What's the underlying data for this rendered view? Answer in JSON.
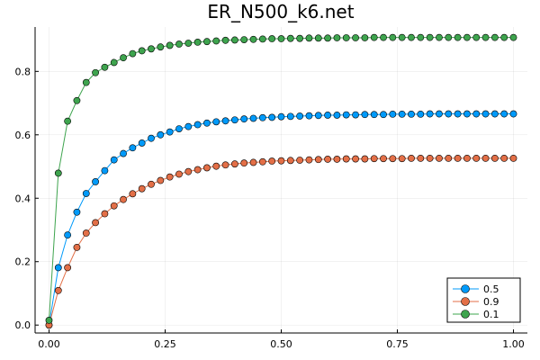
{
  "chart_data": {
    "type": "line",
    "title": "ER_N500_k6.net",
    "xlabel": "",
    "ylabel": "",
    "xlim": [
      -0.03,
      1.03
    ],
    "ylim": [
      -0.025,
      0.94
    ],
    "xticks": [
      0.0,
      0.25,
      0.5,
      0.75,
      1.0
    ],
    "xtick_labels": [
      "0.00",
      "0.25",
      "0.50",
      "0.75",
      "1.00"
    ],
    "yticks": [
      0.0,
      0.2,
      0.4,
      0.6,
      0.8
    ],
    "ytick_labels": [
      "0.0",
      "0.2",
      "0.4",
      "0.6",
      "0.8"
    ],
    "grid": true,
    "legend_position": "bottom-right",
    "markers": true,
    "x": [
      0.0,
      0.02,
      0.04,
      0.06,
      0.08,
      0.1,
      0.12,
      0.14,
      0.16,
      0.18,
      0.2,
      0.22,
      0.24,
      0.26,
      0.28,
      0.3,
      0.32,
      0.34,
      0.36,
      0.38,
      0.4,
      0.42,
      0.44,
      0.46,
      0.48,
      0.5,
      0.52,
      0.54,
      0.56,
      0.58,
      0.6,
      0.62,
      0.64,
      0.66,
      0.68,
      0.7,
      0.72,
      0.74,
      0.76,
      0.78,
      0.8,
      0.82,
      0.84,
      0.86,
      0.88,
      0.9,
      0.92,
      0.94,
      0.96,
      0.98,
      1.0
    ],
    "series": [
      {
        "name": "0.5",
        "color": "#009AFA",
        "values": [
          0.0,
          0.181,
          0.284,
          0.356,
          0.415,
          0.452,
          0.487,
          0.521,
          0.541,
          0.559,
          0.574,
          0.589,
          0.6,
          0.609,
          0.619,
          0.626,
          0.632,
          0.637,
          0.641,
          0.644,
          0.647,
          0.65,
          0.652,
          0.654,
          0.655,
          0.657,
          0.658,
          0.659,
          0.66,
          0.661,
          0.662,
          0.662,
          0.663,
          0.663,
          0.664,
          0.664,
          0.664,
          0.665,
          0.665,
          0.665,
          0.665,
          0.666,
          0.666,
          0.666,
          0.666,
          0.666,
          0.666,
          0.666,
          0.666,
          0.666,
          0.666
        ]
      },
      {
        "name": "0.9",
        "color": "#E36F47",
        "values": [
          0.0,
          0.109,
          0.181,
          0.245,
          0.29,
          0.323,
          0.351,
          0.376,
          0.396,
          0.414,
          0.43,
          0.444,
          0.456,
          0.467,
          0.476,
          0.484,
          0.49,
          0.496,
          0.501,
          0.505,
          0.508,
          0.511,
          0.513,
          0.515,
          0.517,
          0.518,
          0.519,
          0.52,
          0.521,
          0.522,
          0.523,
          0.523,
          0.524,
          0.524,
          0.524,
          0.525,
          0.525,
          0.525,
          0.525,
          0.526,
          0.526,
          0.526,
          0.526,
          0.526,
          0.526,
          0.526,
          0.526,
          0.526,
          0.526,
          0.526,
          0.526
        ]
      },
      {
        "name": "0.1",
        "color": "#3EA44E",
        "values": [
          0.015,
          0.479,
          0.643,
          0.708,
          0.765,
          0.796,
          0.813,
          0.828,
          0.843,
          0.856,
          0.865,
          0.871,
          0.877,
          0.882,
          0.886,
          0.889,
          0.892,
          0.894,
          0.896,
          0.898,
          0.899,
          0.9,
          0.901,
          0.902,
          0.903,
          0.903,
          0.904,
          0.904,
          0.905,
          0.905,
          0.905,
          0.906,
          0.906,
          0.906,
          0.906,
          0.907,
          0.907,
          0.907,
          0.907,
          0.907,
          0.907,
          0.907,
          0.907,
          0.907,
          0.907,
          0.907,
          0.907,
          0.907,
          0.907,
          0.907,
          0.907
        ]
      }
    ]
  }
}
